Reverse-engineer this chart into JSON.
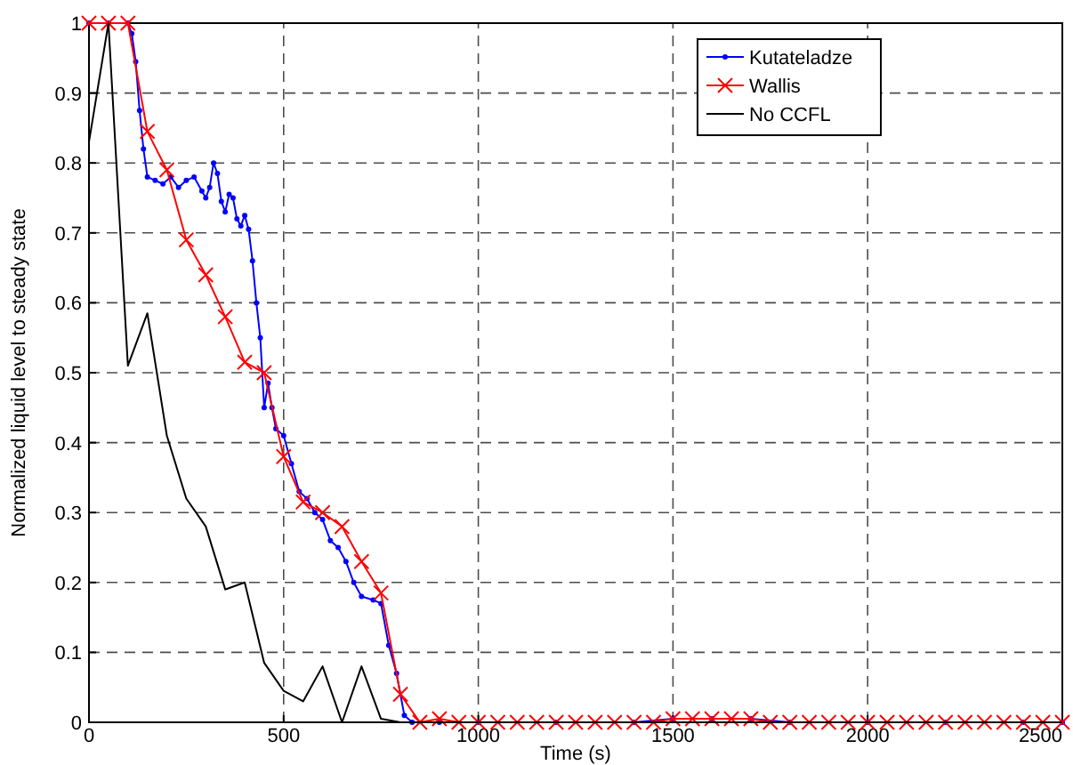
{
  "chart_data": {
    "type": "line",
    "xlabel": "Time (s)",
    "ylabel": "Normalized liquid level to steady state",
    "xlim": [
      0,
      2500
    ],
    "ylim": [
      0,
      1
    ],
    "xticks": [
      0,
      500,
      1000,
      1500,
      2000,
      2500
    ],
    "yticks": [
      0,
      0.1,
      0.2,
      0.3,
      0.4,
      0.5,
      0.6,
      0.7,
      0.8,
      0.9,
      1
    ],
    "grid": true,
    "legend": "top right",
    "line_style": "solid",
    "series": [
      {
        "name": "Kutateladze",
        "color": "#0000ff",
        "marker": "circle",
        "x": [
          0,
          50,
          100,
          110,
          120,
          130,
          140,
          150,
          170,
          190,
          210,
          230,
          250,
          270,
          290,
          300,
          310,
          320,
          330,
          340,
          350,
          360,
          370,
          380,
          390,
          400,
          410,
          420,
          430,
          440,
          450,
          460,
          470,
          480,
          500,
          520,
          540,
          560,
          580,
          600,
          620,
          640,
          660,
          680,
          700,
          730,
          750,
          770,
          790,
          810,
          830,
          900,
          1000,
          1200,
          1400,
          1500,
          1600,
          1700,
          1800,
          2000,
          2200,
          2400,
          2500
        ],
        "values": [
          1,
          1,
          1,
          0.985,
          0.945,
          0.875,
          0.82,
          0.78,
          0.775,
          0.77,
          0.78,
          0.765,
          0.775,
          0.78,
          0.76,
          0.75,
          0.765,
          0.8,
          0.785,
          0.745,
          0.73,
          0.755,
          0.75,
          0.72,
          0.71,
          0.725,
          0.705,
          0.66,
          0.6,
          0.55,
          0.45,
          0.485,
          0.45,
          0.42,
          0.41,
          0.37,
          0.33,
          0.32,
          0.3,
          0.29,
          0.26,
          0.25,
          0.23,
          0.2,
          0.18,
          0.175,
          0.17,
          0.11,
          0.07,
          0.01,
          0,
          0,
          0,
          0,
          0,
          0.005,
          0.005,
          0.005,
          0,
          0,
          0,
          0,
          0
        ]
      },
      {
        "name": "Wallis",
        "color": "#ff0000",
        "marker": "cross",
        "x": [
          0,
          50,
          100,
          150,
          200,
          250,
          300,
          350,
          400,
          450,
          500,
          550,
          600,
          650,
          700,
          750,
          800,
          850,
          900,
          950,
          1000,
          1050,
          1100,
          1150,
          1200,
          1250,
          1300,
          1350,
          1400,
          1450,
          1500,
          1550,
          1600,
          1650,
          1700,
          1750,
          1800,
          1850,
          1900,
          1950,
          2000,
          2050,
          2100,
          2150,
          2200,
          2250,
          2300,
          2350,
          2400,
          2450,
          2500
        ],
        "values": [
          1,
          1,
          1,
          0.845,
          0.79,
          0.69,
          0.64,
          0.58,
          0.515,
          0.5,
          0.38,
          0.315,
          0.3,
          0.28,
          0.23,
          0.185,
          0.04,
          0,
          0.005,
          0,
          0,
          0,
          0,
          0,
          0,
          0,
          0,
          0,
          0,
          0,
          0.005,
          0.005,
          0.005,
          0.005,
          0.005,
          0,
          0,
          0,
          0,
          0,
          0,
          0,
          0,
          0,
          0,
          0,
          0,
          0,
          0,
          0,
          0
        ]
      },
      {
        "name": "No CCFL",
        "color": "#000000",
        "marker": "none",
        "x": [
          0,
          50,
          100,
          150,
          200,
          250,
          300,
          350,
          400,
          450,
          500,
          550,
          600,
          650,
          700,
          750,
          800,
          2500
        ],
        "values": [
          0.83,
          1,
          0.51,
          0.585,
          0.41,
          0.32,
          0.28,
          0.19,
          0.2,
          0.085,
          0.045,
          0.03,
          0.08,
          0,
          0.08,
          0.005,
          0,
          0
        ]
      }
    ]
  }
}
